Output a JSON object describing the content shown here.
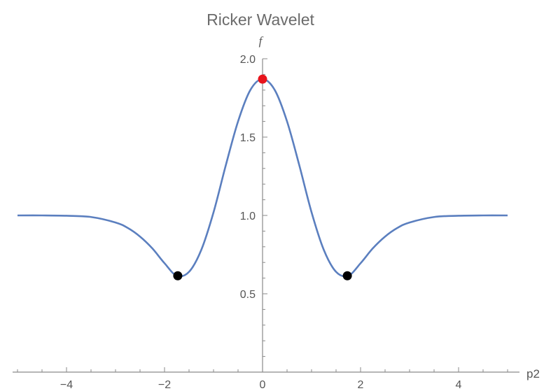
{
  "chart_data": {
    "type": "line",
    "title": "Ricker Wavelet",
    "xlabel": "p2",
    "ylabel": "f",
    "xlim": [
      -5.1,
      5.1
    ],
    "ylim": [
      0.0,
      2.0
    ],
    "x_ticks_major": [
      -4,
      -2,
      0,
      2,
      4
    ],
    "x_tick_labels": [
      "−4",
      "−2",
      "0",
      "2",
      "4"
    ],
    "x_ticks_minor_step": 0.5,
    "y_ticks_major": [
      0.5,
      1.0,
      1.5,
      2.0
    ],
    "y_tick_labels": [
      "0.5",
      "1.0",
      "1.5",
      "2.0"
    ],
    "y_ticks_minor_step": 0.1,
    "grid": false,
    "series": [
      {
        "color": "#5b7fbf",
        "x": [
          -5.0,
          -4.5,
          -4.0,
          -3.5,
          -3.0,
          -2.75,
          -2.5,
          -2.25,
          -2.0,
          -1.75,
          -1.5,
          -1.25,
          -1.0,
          -0.75,
          -0.5,
          -0.25,
          0.0,
          0.25,
          0.5,
          0.75,
          1.0,
          1.25,
          1.5,
          1.75,
          2.0,
          2.25,
          2.5,
          2.75,
          3.0,
          3.5,
          4.0,
          4.5,
          5.0
        ],
        "y": [
          1.0,
          1.0,
          0.998,
          0.99,
          0.955,
          0.92,
          0.865,
          0.79,
          0.695,
          0.615,
          0.64,
          0.78,
          1.02,
          1.32,
          1.6,
          1.8,
          1.87,
          1.8,
          1.6,
          1.32,
          1.02,
          0.78,
          0.64,
          0.615,
          0.695,
          0.79,
          0.865,
          0.92,
          0.955,
          0.99,
          0.998,
          1.0,
          1.0
        ]
      }
    ],
    "points": [
      {
        "x": -1.73,
        "y": 0.615,
        "color": "#000000"
      },
      {
        "x": 1.73,
        "y": 0.615,
        "color": "#000000"
      },
      {
        "x": 0.0,
        "y": 1.87,
        "color": "#e8141c"
      }
    ]
  }
}
